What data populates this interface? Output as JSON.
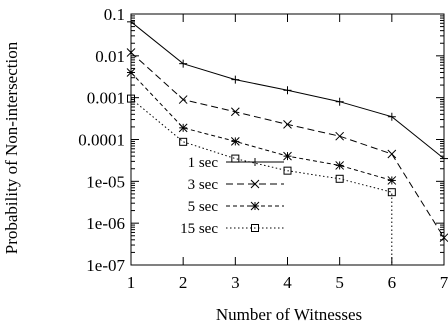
{
  "chart_data": {
    "type": "line",
    "xlabel": "Number of Witnesses",
    "ylabel": "Probability of Non-intersection",
    "xlim": [
      1,
      7
    ],
    "ylim": [
      1e-07,
      0.1
    ],
    "yscale": "log",
    "grid": false,
    "legend_position": "inside-bottom-left",
    "x_ticks": [
      1,
      2,
      3,
      4,
      5,
      6,
      7
    ],
    "y_ticks": [
      {
        "value": 0.1,
        "label": "0.1"
      },
      {
        "value": 0.01,
        "label": "0.01"
      },
      {
        "value": 0.001,
        "label": "0.001"
      },
      {
        "value": 0.0001,
        "label": "0.0001"
      },
      {
        "value": 1e-05,
        "label": "1e-05"
      },
      {
        "value": 1e-06,
        "label": "1e-06"
      },
      {
        "value": 1e-07,
        "label": "1e-07"
      }
    ],
    "series": [
      {
        "name": "1 sec",
        "marker": "plus",
        "dash": "solid",
        "x": [
          1,
          2,
          3,
          4,
          5,
          6,
          7
        ],
        "y": [
          0.065,
          0.0065,
          0.0027,
          0.0015,
          0.0008,
          0.00035,
          3.5e-05
        ]
      },
      {
        "name": "3 sec",
        "marker": "cross",
        "dash": "dashed",
        "x": [
          1,
          2,
          3,
          4,
          5,
          6,
          7
        ],
        "y": [
          0.012,
          0.0009,
          0.00046,
          0.00023,
          0.00012,
          4.5e-05,
          4.5e-07
        ]
      },
      {
        "name": "5 sec",
        "marker": "star",
        "dash": "short-dashed",
        "x": [
          1,
          2,
          3,
          4,
          5,
          6
        ],
        "y": [
          0.004,
          0.00019,
          9e-05,
          4e-05,
          2.4e-05,
          1.05e-05
        ]
      },
      {
        "name": "15 sec",
        "marker": "square",
        "dash": "dotted",
        "x": [
          1,
          2,
          3,
          4,
          5,
          6,
          6
        ],
        "y": [
          0.00095,
          8.8e-05,
          3.5e-05,
          1.8e-05,
          1.15e-05,
          5.5e-06,
          1e-07
        ]
      }
    ]
  }
}
